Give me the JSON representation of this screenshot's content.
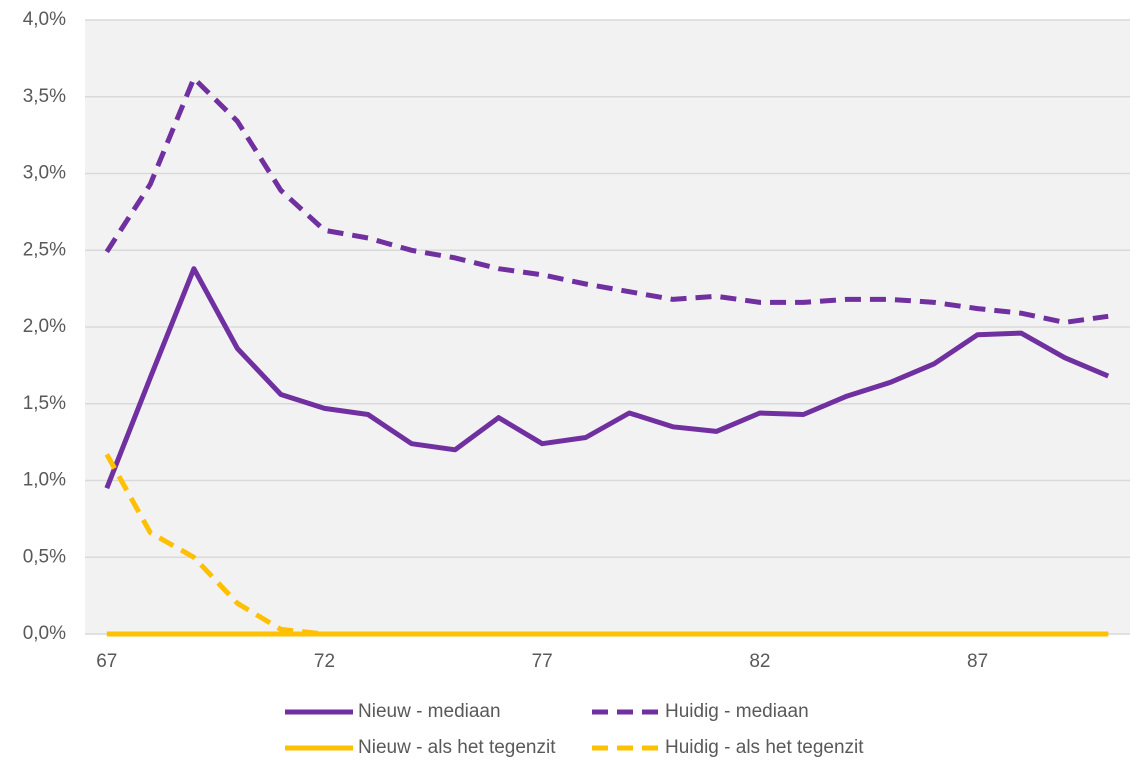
{
  "chart_data": {
    "type": "line",
    "x": [
      67,
      68,
      69,
      70,
      71,
      72,
      73,
      74,
      75,
      76,
      77,
      78,
      79,
      80,
      81,
      82,
      83,
      84,
      85,
      86,
      87,
      88,
      89,
      90
    ],
    "xlim": [
      66.5,
      90.5
    ],
    "xticks": [
      67,
      72,
      77,
      82,
      87
    ],
    "ylim": [
      0,
      4
    ],
    "yticks": [
      {
        "value": 0,
        "label": "0,0%"
      },
      {
        "value": 0.5,
        "label": "0,5%"
      },
      {
        "value": 1,
        "label": "1,0%"
      },
      {
        "value": 1.5,
        "label": "1,5%"
      },
      {
        "value": 2,
        "label": "2,0%"
      },
      {
        "value": 2.5,
        "label": "2,5%"
      },
      {
        "value": 3,
        "label": "3,0%"
      },
      {
        "value": 3.5,
        "label": "3,5%"
      },
      {
        "value": 4,
        "label": "4,0%"
      }
    ],
    "grid": true,
    "legend": "bottom",
    "series": [
      {
        "name": "Nieuw - mediaan",
        "color": "#7030a0",
        "dashed": false,
        "values": [
          0.95,
          1.67,
          2.38,
          1.86,
          1.56,
          1.47,
          1.43,
          1.24,
          1.2,
          1.41,
          1.24,
          1.28,
          1.44,
          1.35,
          1.32,
          1.44,
          1.43,
          1.55,
          1.64,
          1.76,
          1.95,
          1.96,
          1.8,
          1.68
        ]
      },
      {
        "name": "Huidig - mediaan",
        "color": "#7030a0",
        "dashed": true,
        "values": [
          2.49,
          2.93,
          3.62,
          3.34,
          2.89,
          2.63,
          2.58,
          2.5,
          2.45,
          2.38,
          2.34,
          2.28,
          2.23,
          2.18,
          2.2,
          2.16,
          2.16,
          2.18,
          2.18,
          2.16,
          2.12,
          2.09,
          2.03,
          2.07
        ]
      },
      {
        "name": "Nieuw - als het tegenzit",
        "color": "#ffc000",
        "dashed": false,
        "values": [
          0,
          0,
          0,
          0,
          0,
          0,
          0,
          0,
          0,
          0,
          0,
          0,
          0,
          0,
          0,
          0,
          0,
          0,
          0,
          0,
          0,
          0,
          0,
          0
        ]
      },
      {
        "name": "Huidig - als het tegenzit",
        "color": "#ffc000",
        "dashed": true,
        "values": [
          1.17,
          0.66,
          0.5,
          0.2,
          0.03,
          0,
          0,
          0,
          0,
          0,
          0,
          0,
          0,
          0,
          0,
          0,
          0,
          0,
          0,
          0,
          0,
          0,
          0,
          0
        ]
      }
    ]
  }
}
